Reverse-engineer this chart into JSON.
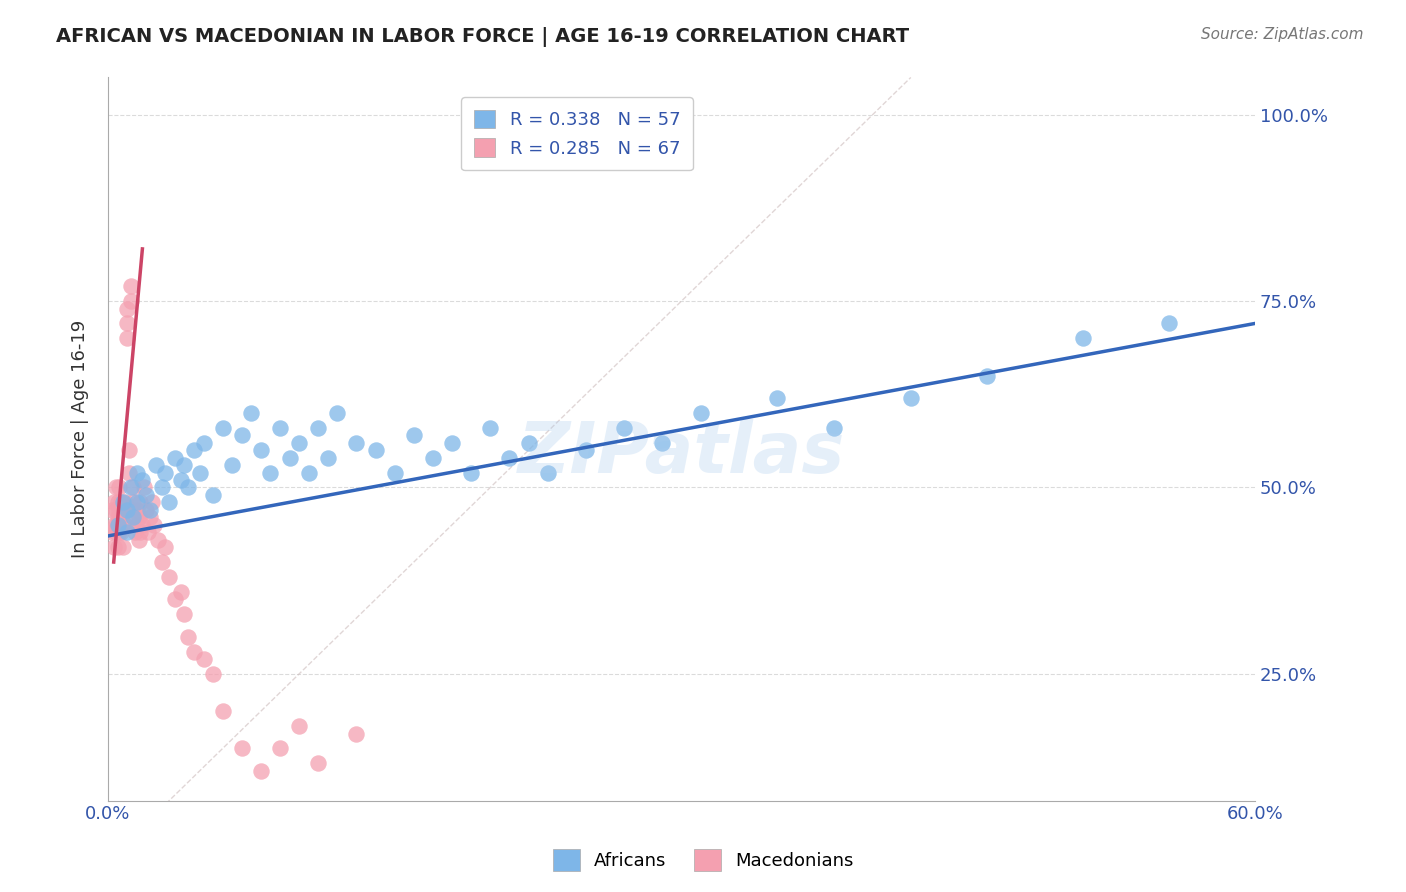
{
  "title": "AFRICAN VS MACEDONIAN IN LABOR FORCE | AGE 16-19 CORRELATION CHART",
  "source": "Source: ZipAtlas.com",
  "ylabel": "In Labor Force | Age 16-19",
  "ytick_labels": [
    "25.0%",
    "50.0%",
    "75.0%",
    "100.0%"
  ],
  "ytick_values": [
    0.25,
    0.5,
    0.75,
    1.0
  ],
  "xlim": [
    0.0,
    0.6
  ],
  "ylim": [
    0.08,
    1.05
  ],
  "color_african": "#7EB6E8",
  "color_macedonian": "#F4A0B0",
  "color_african_line": "#3366BB",
  "color_macedonian_line": "#CC4466",
  "watermark": "ZIPatlas",
  "africans_x": [
    0.005,
    0.008,
    0.01,
    0.01,
    0.012,
    0.013,
    0.015,
    0.015,
    0.018,
    0.02,
    0.022,
    0.025,
    0.028,
    0.03,
    0.032,
    0.035,
    0.038,
    0.04,
    0.042,
    0.045,
    0.048,
    0.05,
    0.055,
    0.06,
    0.065,
    0.07,
    0.075,
    0.08,
    0.085,
    0.09,
    0.095,
    0.1,
    0.105,
    0.11,
    0.115,
    0.12,
    0.13,
    0.14,
    0.15,
    0.16,
    0.17,
    0.18,
    0.19,
    0.2,
    0.21,
    0.22,
    0.23,
    0.25,
    0.27,
    0.29,
    0.31,
    0.35,
    0.38,
    0.42,
    0.46,
    0.51,
    0.555
  ],
  "africans_y": [
    0.45,
    0.48,
    0.44,
    0.47,
    0.5,
    0.46,
    0.48,
    0.52,
    0.51,
    0.49,
    0.47,
    0.53,
    0.5,
    0.52,
    0.48,
    0.54,
    0.51,
    0.53,
    0.5,
    0.55,
    0.52,
    0.56,
    0.49,
    0.58,
    0.53,
    0.57,
    0.6,
    0.55,
    0.52,
    0.58,
    0.54,
    0.56,
    0.52,
    0.58,
    0.54,
    0.6,
    0.56,
    0.55,
    0.52,
    0.57,
    0.54,
    0.56,
    0.52,
    0.58,
    0.54,
    0.56,
    0.52,
    0.55,
    0.58,
    0.56,
    0.6,
    0.62,
    0.58,
    0.62,
    0.65,
    0.7,
    0.72
  ],
  "macedonians_x": [
    0.002,
    0.002,
    0.003,
    0.003,
    0.003,
    0.004,
    0.004,
    0.004,
    0.004,
    0.005,
    0.005,
    0.005,
    0.005,
    0.006,
    0.006,
    0.006,
    0.007,
    0.007,
    0.007,
    0.008,
    0.008,
    0.008,
    0.009,
    0.009,
    0.009,
    0.01,
    0.01,
    0.01,
    0.011,
    0.011,
    0.012,
    0.012,
    0.013,
    0.013,
    0.014,
    0.014,
    0.015,
    0.015,
    0.016,
    0.016,
    0.017,
    0.017,
    0.018,
    0.019,
    0.02,
    0.021,
    0.022,
    0.023,
    0.024,
    0.026,
    0.028,
    0.03,
    0.032,
    0.035,
    0.038,
    0.04,
    0.042,
    0.045,
    0.05,
    0.055,
    0.06,
    0.07,
    0.08,
    0.09,
    0.1,
    0.11,
    0.13
  ],
  "macedonians_y": [
    0.44,
    0.47,
    0.45,
    0.42,
    0.48,
    0.44,
    0.47,
    0.45,
    0.5,
    0.46,
    0.42,
    0.48,
    0.45,
    0.47,
    0.44,
    0.5,
    0.46,
    0.48,
    0.44,
    0.47,
    0.45,
    0.42,
    0.48,
    0.45,
    0.47,
    0.74,
    0.72,
    0.7,
    0.55,
    0.52,
    0.77,
    0.75,
    0.5,
    0.48,
    0.46,
    0.44,
    0.47,
    0.45,
    0.43,
    0.46,
    0.44,
    0.48,
    0.45,
    0.5,
    0.47,
    0.44,
    0.46,
    0.48,
    0.45,
    0.43,
    0.4,
    0.42,
    0.38,
    0.35,
    0.36,
    0.33,
    0.3,
    0.28,
    0.27,
    0.25,
    0.2,
    0.15,
    0.12,
    0.15,
    0.18,
    0.13,
    0.17
  ],
  "grid_color": "#CCCCCC",
  "background_color": "#FFFFFF"
}
